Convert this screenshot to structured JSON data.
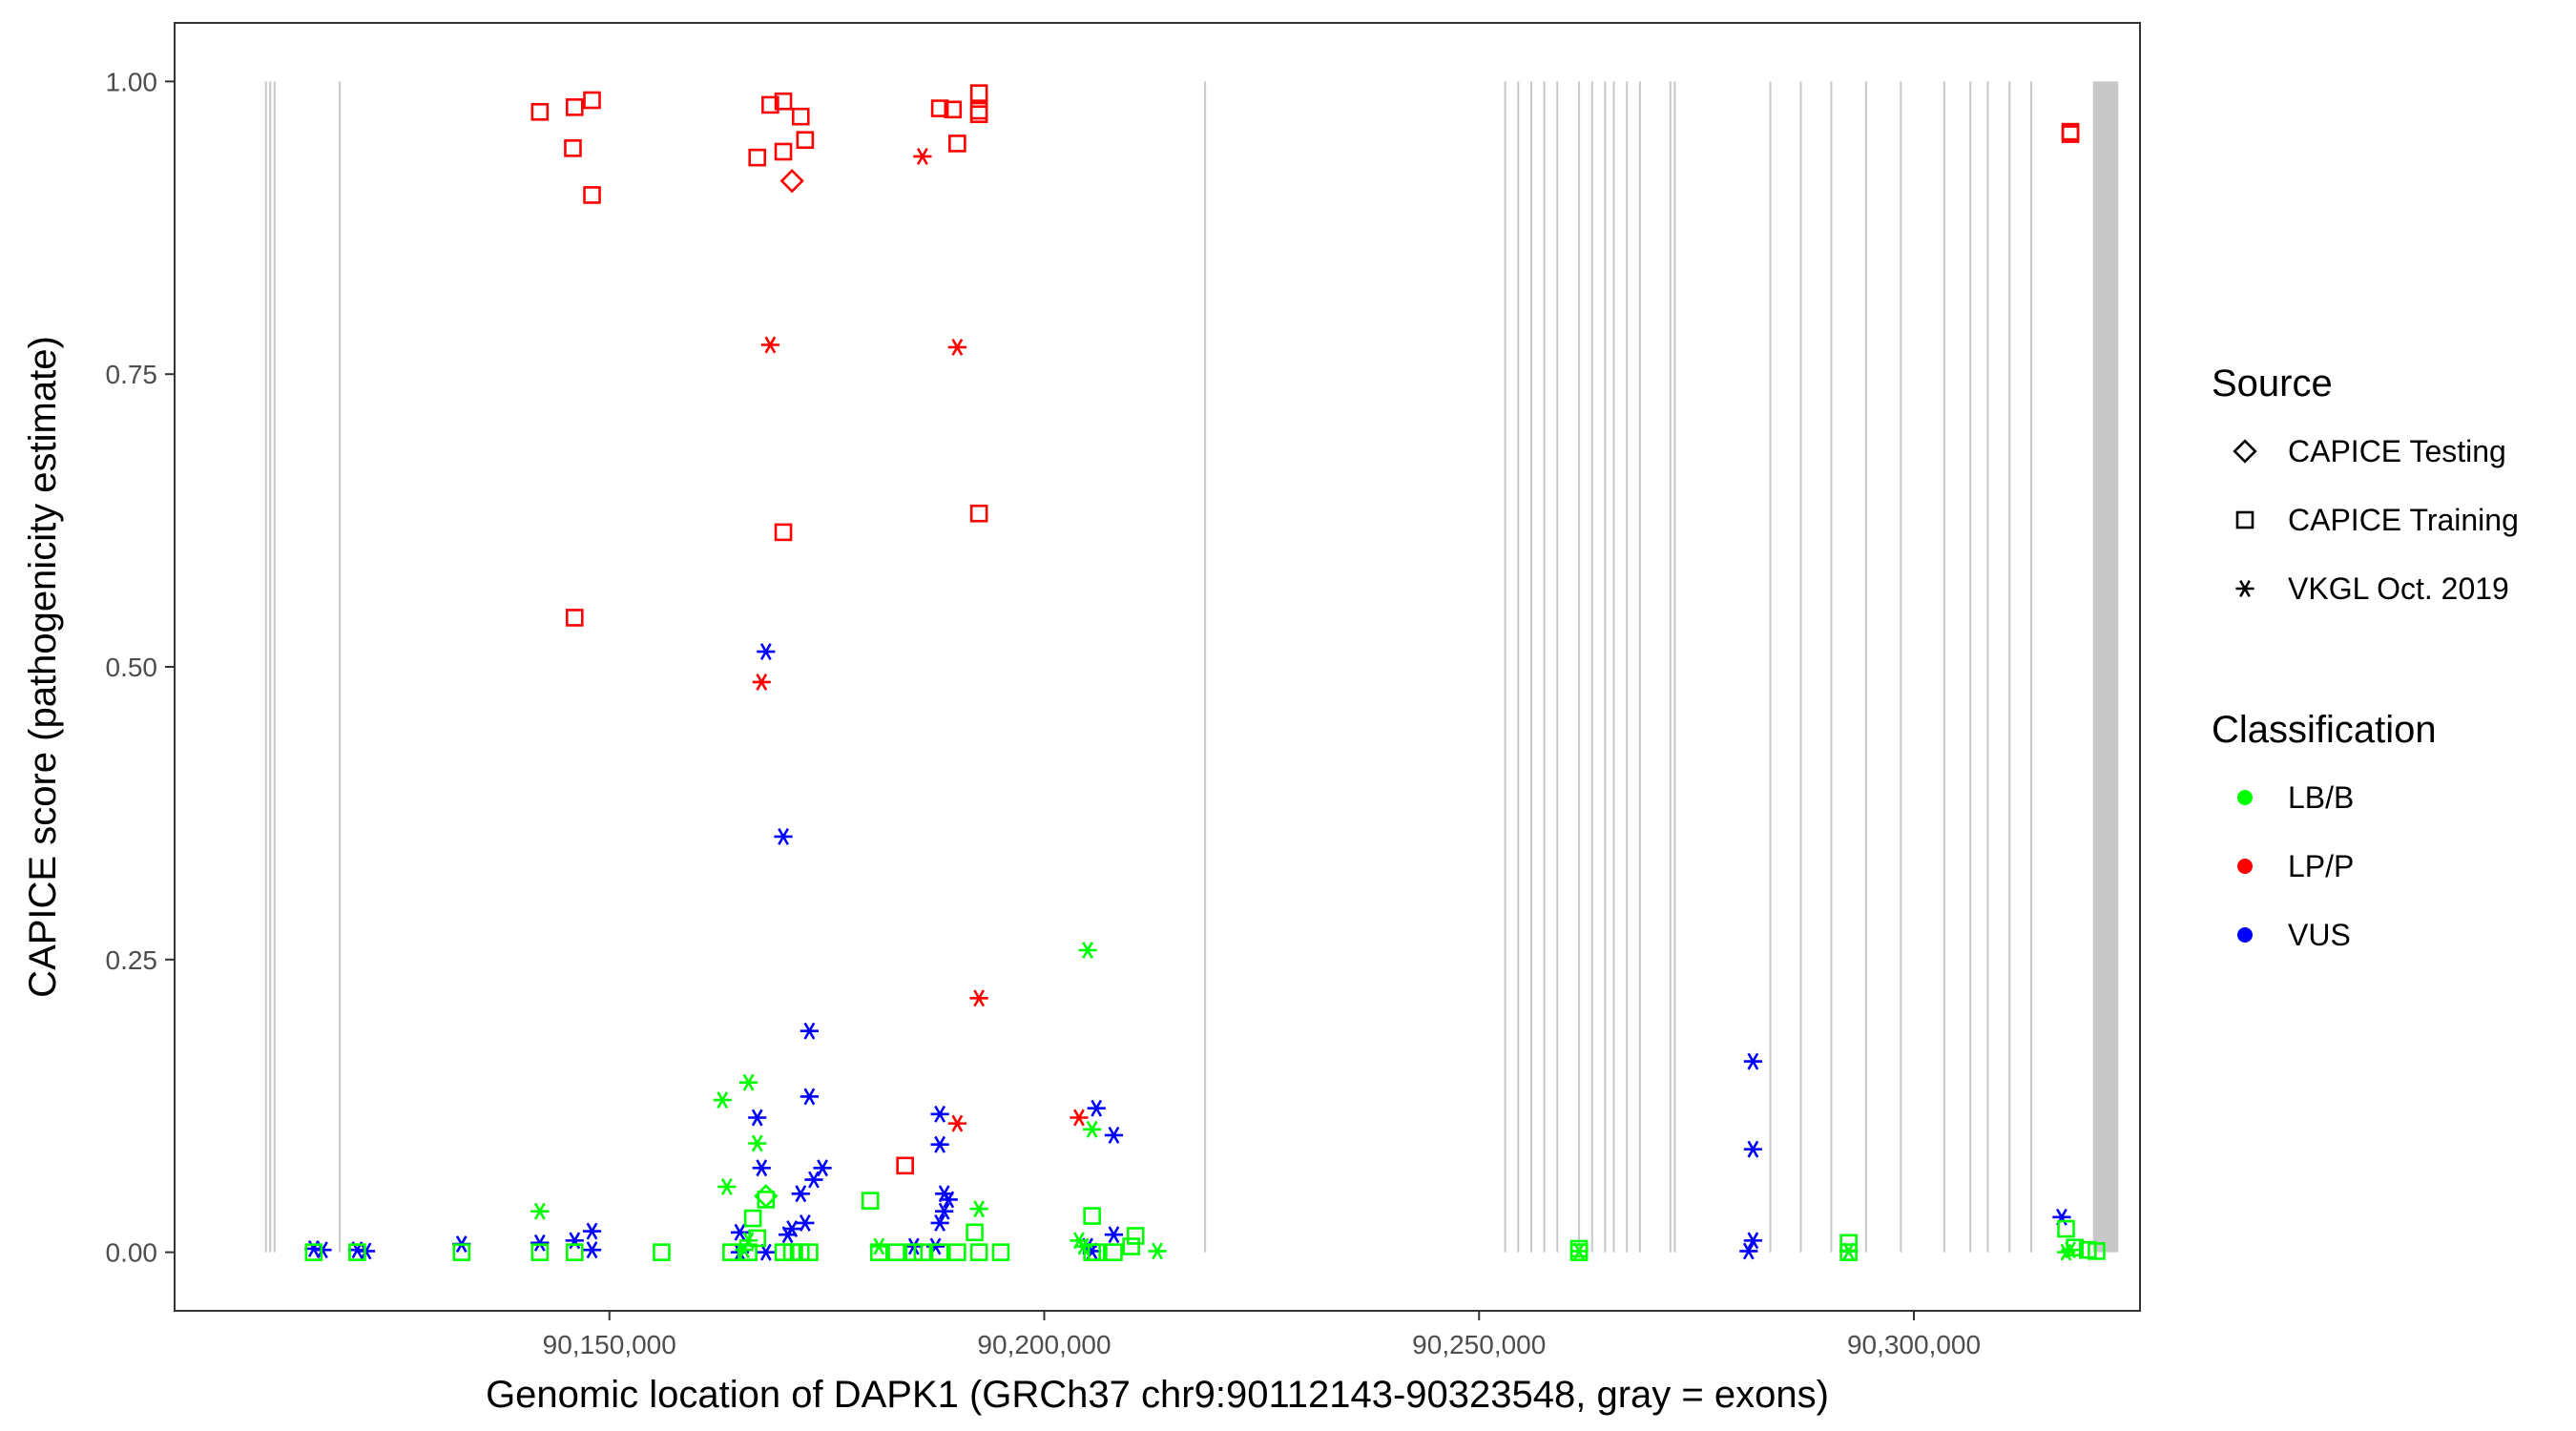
{
  "chart_data": {
    "type": "scatter",
    "xlabel": "Genomic location of DAPK1 (GRCh37 chr9:90112143-90323548, gray = exons)",
    "ylabel": "CAPICE score (pathogenicity estimate)",
    "xlim": [
      90100000,
      90326000
    ],
    "ylim": [
      -0.05,
      1.05
    ],
    "x_ticks": [
      90150000,
      90200000,
      90250000,
      90300000
    ],
    "x_tick_labels": [
      "90,150,000",
      "90,200,000",
      "90,250,000",
      "90,300,000"
    ],
    "y_ticks": [
      0,
      0.25,
      0.5,
      0.75,
      1.0
    ],
    "y_tick_labels": [
      "0.00",
      "0.25",
      "0.50",
      "0.75",
      "1.00"
    ],
    "exons": [
      90110500,
      90111000,
      90111500,
      90119000,
      90218500,
      90253000,
      90254500,
      90256000,
      90257500,
      90259000,
      90261500,
      90263000,
      90264500,
      90265500,
      90267000,
      90268500,
      90272000,
      90272500,
      90283500,
      90287000,
      90290500,
      90294500,
      90298500,
      90303500,
      90306500,
      90308500,
      90311000,
      90313500
    ],
    "exon_block": [
      90320600,
      90323500
    ],
    "colors": {
      "LB/B": "#00ff00",
      "LP/P": "#ff0000",
      "VUS": "#0000ff",
      "exon": "#c8c8c8"
    },
    "legend": {
      "source_title": "Source",
      "source_items": [
        {
          "label": "CAPICE Testing",
          "shape": "diamond"
        },
        {
          "label": "CAPICE Training",
          "shape": "square"
        },
        {
          "label": "VKGL Oct. 2019",
          "shape": "star"
        }
      ],
      "class_title": "Classification",
      "class_items": [
        {
          "label": "LB/B",
          "color": "#00ff00"
        },
        {
          "label": "LP/P",
          "color": "#ff0000"
        },
        {
          "label": "VUS",
          "color": "#0000ff"
        }
      ]
    },
    "series": [
      {
        "name": "LP/P CAPICE Training",
        "class": "LP/P",
        "source": "CAPICE Training",
        "points": [
          [
            90142000,
            0.974
          ],
          [
            90146000,
            0.978
          ],
          [
            90148000,
            0.984
          ],
          [
            90145800,
            0.943
          ],
          [
            90148000,
            0.903
          ],
          [
            90146000,
            0.542
          ],
          [
            90167000,
            0.935
          ],
          [
            90168500,
            0.98
          ],
          [
            90170000,
            0.983
          ],
          [
            90172000,
            0.97
          ],
          [
            90172500,
            0.95
          ],
          [
            90170000,
            0.94
          ],
          [
            90170000,
            0.615
          ],
          [
            90188000,
            0.977
          ],
          [
            90189500,
            0.976
          ],
          [
            90190000,
            0.947
          ],
          [
            90192500,
            0.99
          ],
          [
            90192500,
            0.975
          ],
          [
            90192500,
            0.972
          ],
          [
            90192500,
            0.631
          ],
          [
            90184000,
            0.074
          ],
          [
            90318000,
            0.957
          ],
          [
            90318000,
            0.955
          ]
        ]
      },
      {
        "name": "LP/P CAPICE Testing",
        "class": "LP/P",
        "source": "CAPICE Testing",
        "points": [
          [
            90171000,
            0.915
          ]
        ]
      },
      {
        "name": "LP/P VKGL",
        "class": "LP/P",
        "source": "VKGL Oct. 2019",
        "points": [
          [
            90186000,
            0.936
          ],
          [
            90168500,
            0.775
          ],
          [
            90190000,
            0.773
          ],
          [
            90167500,
            0.487
          ],
          [
            90192500,
            0.217
          ],
          [
            90190000,
            0.11
          ],
          [
            90204000,
            0.115
          ]
        ]
      },
      {
        "name": "VUS VKGL",
        "class": "VUS",
        "source": "VKGL Oct. 2019",
        "points": [
          [
            90116000,
            0.003
          ],
          [
            90117000,
            0.002
          ],
          [
            90121000,
            0.002
          ],
          [
            90122000,
            0.001
          ],
          [
            90133000,
            0.007
          ],
          [
            90142000,
            0.008
          ],
          [
            90146000,
            0.01
          ],
          [
            90148000,
            0.018
          ],
          [
            90148000,
            0.002
          ],
          [
            90165000,
            0.017
          ],
          [
            90168000,
            0.513
          ],
          [
            90170000,
            0.355
          ],
          [
            90167000,
            0.115
          ],
          [
            90167500,
            0.072
          ],
          [
            90173000,
            0.189
          ],
          [
            90173000,
            0.133
          ],
          [
            90173500,
            0.062
          ],
          [
            90174500,
            0.072
          ],
          [
            90172000,
            0.05
          ],
          [
            90171000,
            0.02
          ],
          [
            90170500,
            0.015
          ],
          [
            90172500,
            0.025
          ],
          [
            90168000,
            0.0
          ],
          [
            90165000,
            0.0
          ],
          [
            90188000,
            0.118
          ],
          [
            90188000,
            0.092
          ],
          [
            90188500,
            0.05
          ],
          [
            90189000,
            0.045
          ],
          [
            90188500,
            0.035
          ],
          [
            90188000,
            0.025
          ],
          [
            90185000,
            0.005
          ],
          [
            90187500,
            0.005
          ],
          [
            90206000,
            0.123
          ],
          [
            90208000,
            0.1
          ],
          [
            90208000,
            0.015
          ],
          [
            90205000,
            0.005
          ],
          [
            90205500,
            0.001
          ],
          [
            90281500,
            0.163
          ],
          [
            90281500,
            0.088
          ],
          [
            90281500,
            0.01
          ],
          [
            90281000,
            0.001
          ],
          [
            90292500,
            0.001
          ],
          [
            90317000,
            0.03
          ]
        ]
      },
      {
        "name": "LB/B VKGL",
        "class": "LB/B",
        "source": "VKGL Oct. 2019",
        "points": [
          [
            90142000,
            0.035
          ],
          [
            90163000,
            0.13
          ],
          [
            90166000,
            0.145
          ],
          [
            90167000,
            0.093
          ],
          [
            90163500,
            0.056
          ],
          [
            90166000,
            0.01
          ],
          [
            90165500,
            0.002
          ],
          [
            90205000,
            0.258
          ],
          [
            90205500,
            0.105
          ],
          [
            90192500,
            0.037
          ],
          [
            90204000,
            0.01
          ],
          [
            90204500,
            0.005
          ],
          [
            90213000,
            0.001
          ],
          [
            90261500,
            0.001
          ],
          [
            90292500,
            0.001
          ],
          [
            90318000,
            0.002
          ],
          [
            90317500,
            0.0
          ],
          [
            90181000,
            0.005
          ]
        ]
      },
      {
        "name": "LB/B CAPICE Training",
        "class": "LB/B",
        "source": "CAPICE Training",
        "points": [
          [
            90116000,
            0.0
          ],
          [
            90121000,
            0.0
          ],
          [
            90133000,
            0.0
          ],
          [
            90142000,
            0.0
          ],
          [
            90146000,
            0.0
          ],
          [
            90156000,
            0.0
          ],
          [
            90164000,
            0.0
          ],
          [
            90166000,
            0.0
          ],
          [
            90166500,
            0.029
          ],
          [
            90167000,
            0.012
          ],
          [
            90168000,
            0.045
          ],
          [
            90170000,
            0.0
          ],
          [
            90171000,
            0.0
          ],
          [
            90172000,
            0.0
          ],
          [
            90173000,
            0.0
          ],
          [
            90180000,
            0.044
          ],
          [
            90181000,
            0.0
          ],
          [
            90183000,
            0.0
          ],
          [
            90185000,
            0.0
          ],
          [
            90186000,
            0.0
          ],
          [
            90188000,
            0.0
          ],
          [
            90190000,
            0.0
          ],
          [
            90192000,
            0.017
          ],
          [
            90192500,
            0.0
          ],
          [
            90195000,
            0.0
          ],
          [
            90205500,
            0.031
          ],
          [
            90205500,
            0.0
          ],
          [
            90206000,
            0.0
          ],
          [
            90208000,
            0.0
          ],
          [
            90210000,
            0.005
          ],
          [
            90210500,
            0.014
          ],
          [
            90261500,
            0.0
          ],
          [
            90261500,
            0.003
          ],
          [
            90292500,
            0.0
          ],
          [
            90292500,
            0.008
          ],
          [
            90317500,
            0.02
          ],
          [
            90318500,
            0.004
          ],
          [
            90320000,
            0.002
          ],
          [
            90321000,
            0.001
          ]
        ]
      },
      {
        "name": "LB/B CAPICE Testing",
        "class": "LB/B",
        "source": "CAPICE Testing",
        "points": [
          [
            90168000,
            0.048
          ]
        ]
      }
    ]
  }
}
